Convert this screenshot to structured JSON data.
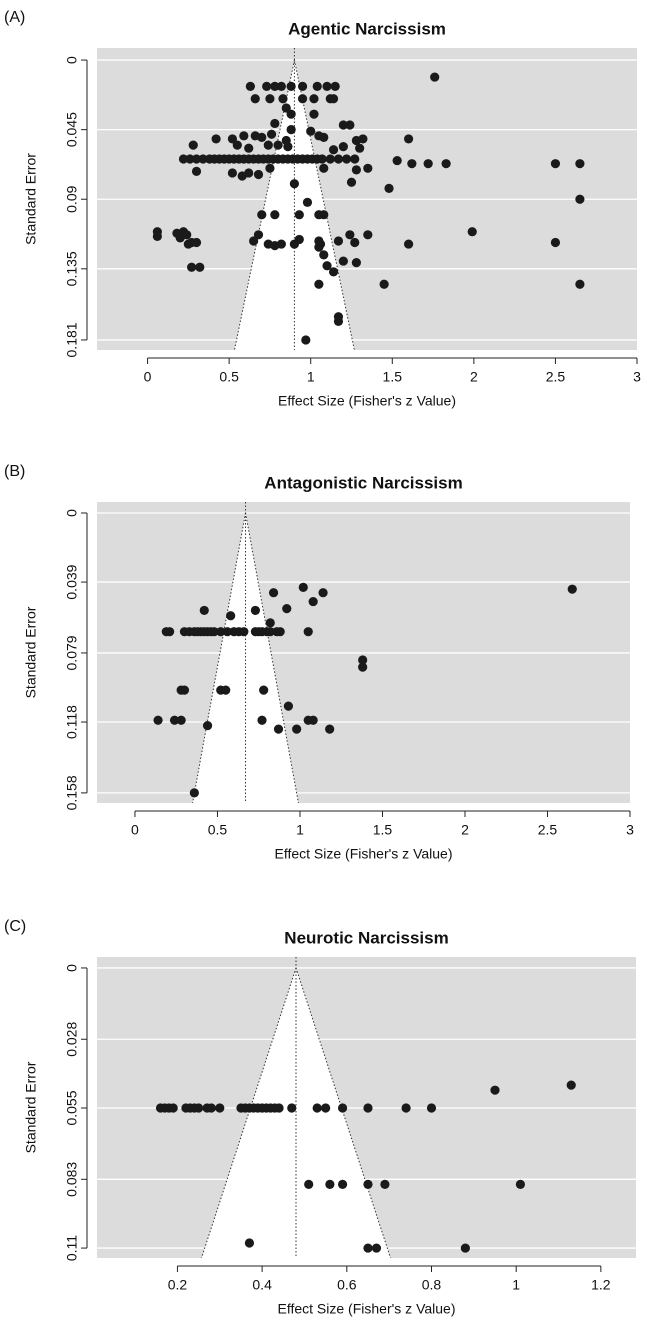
{
  "chart_data": [
    {
      "type": "funnel",
      "label": "(A)",
      "title": "Agentic Narcissism",
      "xlabel": "Effect Size (Fisher's z Value)",
      "ylabel": "Standard Error",
      "xlim": [
        -0.31,
        3.0
      ],
      "ylim": [
        -0.0078,
        0.1875
      ],
      "xticks": [
        0,
        0.5,
        1,
        1.5,
        2,
        2.5,
        3
      ],
      "yticks": [
        0,
        0.045,
        0.09,
        0.135,
        0.181
      ],
      "pooled_effect": 0.9,
      "grid": true,
      "color": "#1a1a1a",
      "x": [
        1.76,
        0.63,
        0.73,
        0.78,
        0.82,
        0.88,
        0.95,
        1.04,
        1.1,
        1.15,
        0.66,
        0.75,
        0.83,
        0.95,
        1.02,
        1.12,
        1.14,
        0.85,
        0.88,
        1.02,
        0.78,
        1.2,
        1.24,
        0.88,
        1.0,
        1.05,
        0.42,
        0.52,
        0.59,
        0.66,
        0.7,
        0.76,
        0.85,
        1.28,
        1.32,
        1.6,
        1.08,
        0.28,
        0.55,
        0.74,
        0.8,
        0.86,
        0.62,
        1.2,
        1.3,
        1.14,
        0.22,
        0.26,
        0.3,
        0.34,
        0.38,
        0.41,
        0.44,
        0.47,
        0.5,
        0.53,
        0.56,
        0.59,
        0.62,
        0.65,
        0.68,
        0.71,
        0.74,
        0.77,
        0.8,
        0.83,
        0.86,
        0.89,
        0.92,
        0.95,
        0.98,
        1.01,
        1.04,
        1.07,
        1.12,
        1.17,
        1.22,
        1.27,
        1.53,
        1.62,
        1.72,
        1.83,
        2.5,
        2.65,
        0.3,
        0.52,
        0.58,
        0.62,
        0.68,
        0.75,
        1.28,
        1.35,
        1.08,
        1.25,
        1.48,
        0.9,
        0.98,
        2.65,
        0.7,
        0.78,
        0.93,
        1.05,
        1.08,
        0.06,
        0.06,
        0.18,
        0.22,
        0.24,
        0.2,
        0.27,
        0.3,
        0.25,
        1.99,
        1.35,
        0.65,
        0.68,
        0.74,
        0.78,
        0.82,
        0.9,
        0.93,
        1.05,
        1.06,
        1.05,
        1.17,
        1.24,
        1.27,
        1.6,
        2.5,
        1.08,
        1.1,
        1.14,
        1.2,
        0.27,
        0.32,
        1.28,
        1.05,
        1.45,
        2.65,
        1.17,
        1.17,
        0.97
      ],
      "values": [
        0.011,
        0.017,
        0.017,
        0.017,
        0.017,
        0.017,
        0.017,
        0.017,
        0.017,
        0.017,
        0.025,
        0.025,
        0.025,
        0.025,
        0.025,
        0.025,
        0.025,
        0.031,
        0.035,
        0.035,
        0.041,
        0.042,
        0.042,
        0.045,
        0.046,
        0.049,
        0.051,
        0.051,
        0.049,
        0.049,
        0.05,
        0.048,
        0.052,
        0.052,
        0.051,
        0.051,
        0.05,
        0.055,
        0.055,
        0.055,
        0.055,
        0.056,
        0.057,
        0.056,
        0.057,
        0.058,
        0.064,
        0.064,
        0.064,
        0.064,
        0.064,
        0.064,
        0.064,
        0.064,
        0.064,
        0.064,
        0.064,
        0.064,
        0.064,
        0.064,
        0.064,
        0.064,
        0.064,
        0.064,
        0.064,
        0.064,
        0.064,
        0.064,
        0.064,
        0.064,
        0.064,
        0.064,
        0.064,
        0.064,
        0.064,
        0.064,
        0.064,
        0.064,
        0.065,
        0.067,
        0.067,
        0.067,
        0.067,
        0.067,
        0.072,
        0.073,
        0.075,
        0.073,
        0.074,
        0.07,
        0.071,
        0.07,
        0.07,
        0.079,
        0.083,
        0.08,
        0.092,
        0.09,
        0.1,
        0.1,
        0.1,
        0.1,
        0.1,
        0.111,
        0.114,
        0.112,
        0.111,
        0.113,
        0.115,
        0.118,
        0.118,
        0.119,
        0.111,
        0.113,
        0.117,
        0.113,
        0.119,
        0.12,
        0.119,
        0.119,
        0.116,
        0.117,
        0.119,
        0.121,
        0.117,
        0.113,
        0.118,
        0.119,
        0.118,
        0.126,
        0.133,
        0.137,
        0.13,
        0.134,
        0.134,
        0.131,
        0.145,
        0.145,
        0.145,
        0.166,
        0.169,
        0.181
      ]
    },
    {
      "type": "funnel",
      "label": "(B)",
      "title": "Antagonistic Narcissism",
      "xlabel": "Effect Size (Fisher's z Value)",
      "ylabel": "Standard Error",
      "xlim": [
        -0.23,
        3.0
      ],
      "ylim": [
        -0.0062,
        0.1637
      ],
      "xticks": [
        0,
        0.5,
        1,
        1.5,
        2,
        2.5,
        3
      ],
      "yticks": [
        0,
        0.039,
        0.079,
        0.118,
        0.158
      ],
      "pooled_effect": 0.67,
      "grid": true,
      "color": "#1a1a1a",
      "x": [
        2.65,
        0.84,
        0.92,
        1.02,
        1.08,
        1.14,
        0.42,
        0.58,
        0.73,
        0.82,
        0.19,
        0.21,
        0.3,
        0.33,
        0.36,
        0.38,
        0.4,
        0.42,
        0.44,
        0.46,
        0.48,
        0.52,
        0.56,
        0.6,
        0.63,
        0.66,
        0.73,
        0.75,
        0.77,
        0.8,
        0.82,
        0.86,
        0.88,
        1.05,
        1.38,
        1.38,
        0.28,
        0.3,
        0.52,
        0.55,
        0.78,
        0.93,
        0.14,
        0.24,
        0.28,
        0.44,
        0.77,
        1.05,
        1.08,
        0.87,
        0.98,
        1.18,
        0.36
      ],
      "values": [
        0.043,
        0.045,
        0.054,
        0.042,
        0.05,
        0.045,
        0.055,
        0.058,
        0.055,
        0.062,
        0.067,
        0.067,
        0.067,
        0.067,
        0.067,
        0.067,
        0.067,
        0.067,
        0.067,
        0.067,
        0.067,
        0.067,
        0.067,
        0.067,
        0.067,
        0.067,
        0.067,
        0.067,
        0.067,
        0.067,
        0.067,
        0.067,
        0.067,
        0.067,
        0.083,
        0.087,
        0.1,
        0.1,
        0.1,
        0.1,
        0.1,
        0.109,
        0.117,
        0.117,
        0.117,
        0.12,
        0.117,
        0.117,
        0.117,
        0.122,
        0.122,
        0.122,
        0.158
      ]
    },
    {
      "type": "funnel",
      "label": "(C)",
      "title": "Neurotic Narcissism",
      "xlabel": "Effect Size (Fisher's z Value)",
      "ylabel": "Standard Error",
      "xlim": [
        0.01,
        1.283
      ],
      "ylim": [
        -0.0043,
        0.1139
      ],
      "xticks": [
        0.2,
        0.4,
        0.6,
        0.8,
        1,
        1.2
      ],
      "yticks": [
        0,
        0.028,
        0.055,
        0.083,
        0.11
      ],
      "pooled_effect": 0.48,
      "grid": true,
      "color": "#1a1a1a",
      "x": [
        1.13,
        0.95,
        0.16,
        0.17,
        0.18,
        0.19,
        0.22,
        0.23,
        0.24,
        0.25,
        0.27,
        0.28,
        0.3,
        0.35,
        0.36,
        0.37,
        0.38,
        0.39,
        0.4,
        0.41,
        0.42,
        0.43,
        0.44,
        0.47,
        0.53,
        0.55,
        0.59,
        0.65,
        0.74,
        0.8,
        0.51,
        0.56,
        0.59,
        0.65,
        0.69,
        1.01,
        0.37,
        0.65,
        0.67,
        0.88
      ],
      "values": [
        0.046,
        0.048,
        0.055,
        0.055,
        0.055,
        0.055,
        0.055,
        0.055,
        0.055,
        0.055,
        0.055,
        0.055,
        0.055,
        0.055,
        0.055,
        0.055,
        0.055,
        0.055,
        0.055,
        0.055,
        0.055,
        0.055,
        0.055,
        0.055,
        0.055,
        0.055,
        0.055,
        0.055,
        0.055,
        0.055,
        0.085,
        0.085,
        0.085,
        0.085,
        0.085,
        0.085,
        0.108,
        0.11,
        0.11,
        0.11
      ]
    }
  ]
}
